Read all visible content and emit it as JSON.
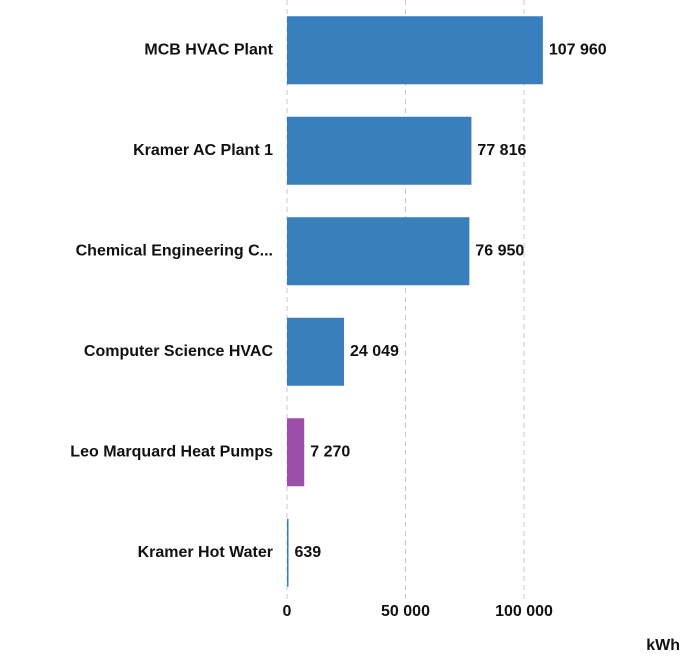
{
  "chart_data": {
    "type": "barh",
    "categories": [
      "MCB HVAC Plant",
      "Kramer AC Plant 1",
      "Chemical Engineering C...",
      "Computer Science HVAC",
      "Leo Marquard Heat Pumps",
      "Kramer Hot Water"
    ],
    "values": [
      107960,
      77816,
      76950,
      24049,
      7270,
      639
    ],
    "value_labels": [
      "107 960",
      "77 816",
      "76 950",
      "24 049",
      "7 270",
      "639"
    ],
    "colors": [
      "#3a7fbd",
      "#3a7fbd",
      "#3a7fbd",
      "#3a7fbd",
      "#9b4fa8",
      "#3a7fbd"
    ],
    "xlim": [
      0,
      120000
    ],
    "xticks": [
      0,
      {
        "value": 50000,
        "label": "50 000"
      },
      {
        "value": 100000,
        "label": "100 000"
      }
    ],
    "xlabel": "kWh",
    "grid": true
  }
}
